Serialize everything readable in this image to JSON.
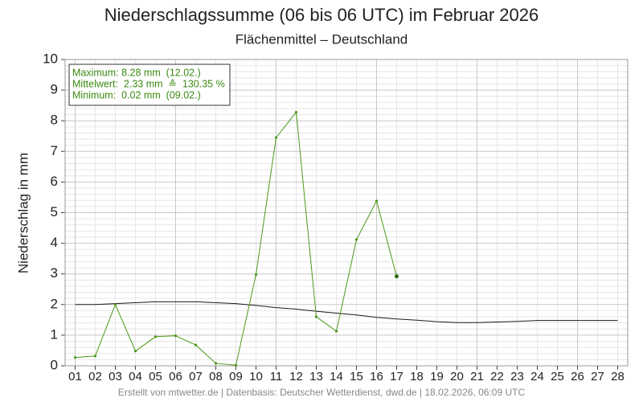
{
  "chart_data": {
    "type": "line",
    "title": "Niederschlagssumme (06 bis 06 UTC) im Februar 2026",
    "subtitle": "Flächenmittel – Deutschland",
    "y_label": "Niederschlag in mm",
    "footer": "Erstellt von mtwetter.de | Datenbasis: Deutscher Wetterdienst, dwd.de | 18.02.2026, 06:09 UTC",
    "stats_box": [
      "Maximum: 8.28 mm  (12.02.)",
      "Mittelwert:  2.33 mm  ≙  130.35 %",
      "Minimum:  0.02 mm  (09.02.)"
    ],
    "stats_color": "#3a8a10",
    "categories": [
      "01",
      "02",
      "03",
      "04",
      "05",
      "06",
      "07",
      "08",
      "09",
      "10",
      "11",
      "12",
      "13",
      "14",
      "15",
      "16",
      "17",
      "18",
      "19",
      "20",
      "21",
      "22",
      "23",
      "24",
      "25",
      "26",
      "27",
      "28"
    ],
    "series": [
      {
        "color": "#1a1a1a",
        "markers": false,
        "values": [
          2.0,
          2.0,
          2.03,
          2.06,
          2.09,
          2.09,
          2.09,
          2.06,
          2.03,
          1.97,
          1.9,
          1.85,
          1.78,
          1.72,
          1.66,
          1.58,
          1.53,
          1.49,
          1.44,
          1.41,
          1.41,
          1.43,
          1.45,
          1.48,
          1.48,
          1.48,
          1.48,
          1.48
        ]
      },
      {
        "color": "#4a9a1a",
        "markers": true,
        "values": [
          0.27,
          0.32,
          2.0,
          0.48,
          0.95,
          0.98,
          0.68,
          0.08,
          0.02,
          2.98,
          7.45,
          8.28,
          1.6,
          1.13,
          4.12,
          5.38,
          2.92,
          null,
          null,
          null,
          null,
          null,
          null,
          null,
          null,
          null,
          null,
          null
        ]
      }
    ],
    "ylim": [
      0,
      10
    ],
    "yticks": [
      0,
      1,
      2,
      3,
      4,
      5,
      6,
      7,
      8,
      9,
      10
    ],
    "grid": true
  }
}
